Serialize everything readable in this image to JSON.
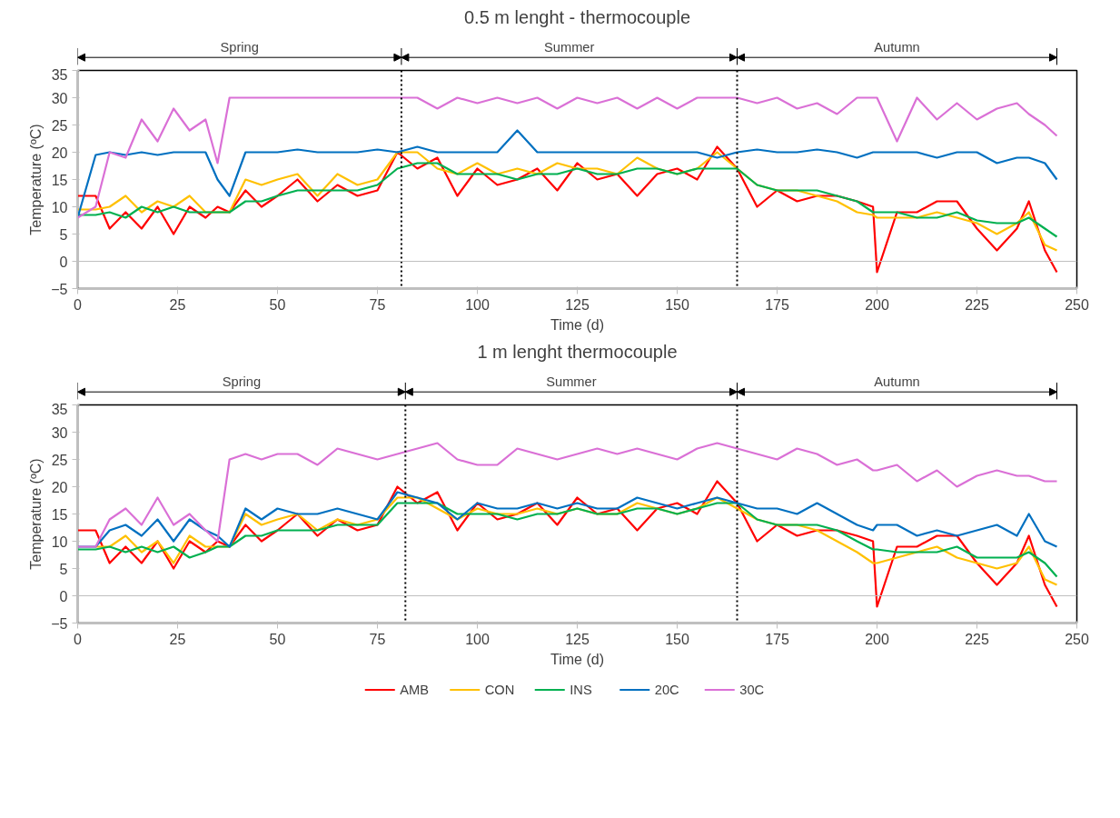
{
  "chart_data": [
    {
      "type": "line",
      "title": "0.5 m lenght - thermocouple",
      "xlabel": "Time (d)",
      "ylabel": "Temperature (ºC)",
      "xlim": [
        0,
        250
      ],
      "ylim": [
        -5,
        35
      ],
      "xticks": [
        0,
        25,
        50,
        75,
        100,
        125,
        150,
        175,
        200,
        225,
        250
      ],
      "yticks": [
        -5,
        0,
        5,
        10,
        15,
        20,
        25,
        30,
        35
      ],
      "grid": false,
      "legend": false,
      "line_style": "solid",
      "marker": "none",
      "x": [
        0,
        4.5,
        8,
        12,
        16,
        20,
        24,
        28,
        32,
        35,
        38,
        42,
        46,
        50,
        55,
        60,
        65,
        70,
        75,
        80,
        85,
        90,
        95,
        100,
        105,
        110,
        115,
        120,
        125,
        130,
        135,
        140,
        145,
        150,
        155,
        160,
        165,
        170,
        175,
        180,
        185,
        190,
        195,
        199,
        200,
        205,
        210,
        215,
        220,
        225,
        230,
        235,
        238,
        242,
        245
      ],
      "series": [
        {
          "color": "#ff0000",
          "values": [
            12,
            12,
            6,
            9,
            6,
            10,
            5,
            10,
            8,
            10,
            9,
            13,
            10,
            12,
            15,
            11,
            14,
            12,
            13,
            20,
            17,
            19,
            12,
            17,
            14,
            15,
            17,
            13,
            18,
            15,
            16,
            12,
            16,
            17,
            15,
            21,
            17,
            10,
            13,
            11,
            12,
            12,
            11,
            10,
            -2,
            9,
            9,
            11,
            11,
            6,
            2,
            6,
            11,
            2,
            -2
          ]
        },
        {
          "color": "#ffc000",
          "values": [
            9.5,
            9.5,
            10,
            12,
            9,
            11,
            10,
            12,
            9,
            9,
            9,
            15,
            14,
            15,
            16,
            12,
            16,
            14,
            15,
            20,
            20,
            17,
            16,
            18,
            16,
            17,
            16,
            18,
            17,
            17,
            16,
            19,
            17,
            16,
            17,
            20,
            17,
            14,
            13,
            13,
            12,
            11,
            9,
            8.5,
            8,
            8,
            8,
            9,
            8,
            7,
            5,
            7,
            9,
            3,
            2
          ]
        },
        {
          "color": "#00b050",
          "values": [
            8.5,
            8.5,
            9,
            8,
            10,
            9,
            10,
            9,
            9,
            9,
            9,
            11,
            11,
            12,
            13,
            13,
            13,
            13,
            14,
            17,
            18,
            18,
            16,
            16,
            16,
            15,
            16,
            16,
            17,
            16,
            16,
            17,
            17,
            16,
            17,
            17,
            17,
            14,
            13,
            13,
            13,
            12,
            11,
            9,
            9,
            9,
            8,
            8,
            9,
            7.5,
            7,
            7,
            8,
            6,
            4.5
          ]
        },
        {
          "color": "#0070c0",
          "values": [
            8,
            19.5,
            20,
            19.5,
            20,
            19.5,
            20,
            20,
            20,
            15,
            12,
            20,
            20,
            20,
            20.5,
            20,
            20,
            20,
            20.5,
            20,
            21,
            20,
            20,
            20,
            20,
            24,
            20,
            20,
            20,
            20,
            20,
            20,
            20,
            20,
            20,
            19,
            20,
            20.5,
            20,
            20,
            20.5,
            20,
            19,
            20,
            20,
            20,
            20,
            19,
            20,
            20,
            18,
            19,
            19,
            18,
            15
          ]
        },
        {
          "color": "#da70d6",
          "values": [
            8,
            10,
            20,
            19,
            26,
            22,
            28,
            24,
            26,
            18,
            30,
            30,
            30,
            30,
            30,
            30,
            30,
            30,
            30,
            30,
            30,
            28,
            30,
            29,
            30,
            29,
            30,
            28,
            30,
            29,
            30,
            28,
            30,
            28,
            30,
            30,
            30,
            29,
            30,
            28,
            29,
            27,
            30,
            30,
            30,
            22,
            30,
            26,
            29,
            26,
            28,
            29,
            27,
            25,
            23
          ]
        }
      ],
      "ref_lines": [
        {
          "axis": "x",
          "value": 81,
          "line_style": "dotted",
          "color": "#000000"
        },
        {
          "axis": "x",
          "value": 165,
          "line_style": "dotted",
          "color": "#000000"
        },
        {
          "axis": "y",
          "value": 0,
          "line_style": "solid",
          "color": "#bfbfbf"
        }
      ],
      "annotations": [
        "Spring",
        "Summer",
        "Autumn"
      ]
    },
    {
      "type": "line",
      "title": "1 m lenght thermocouple",
      "xlabel": "Time (d)",
      "ylabel": "Temperature (ºC)",
      "xlim": [
        0,
        250
      ],
      "ylim": [
        -5,
        35
      ],
      "xticks": [
        0,
        25,
        50,
        75,
        100,
        125,
        150,
        175,
        200,
        225,
        250
      ],
      "yticks": [
        -5,
        0,
        5,
        10,
        15,
        20,
        25,
        30,
        35
      ],
      "grid": false,
      "legend": "bottom",
      "line_style": "solid",
      "marker": "none",
      "x": [
        0,
        4.5,
        8,
        12,
        16,
        20,
        24,
        28,
        32,
        35,
        38,
        42,
        46,
        50,
        55,
        60,
        65,
        70,
        75,
        80,
        85,
        90,
        95,
        100,
        105,
        110,
        115,
        120,
        125,
        130,
        135,
        140,
        145,
        150,
        155,
        160,
        165,
        170,
        175,
        180,
        185,
        190,
        195,
        199,
        200,
        205,
        210,
        215,
        220,
        225,
        230,
        235,
        238,
        242,
        245
      ],
      "series": [
        {
          "name": "AMB",
          "color": "#ff0000",
          "values": [
            12,
            12,
            6,
            9,
            6,
            10,
            5,
            10,
            8,
            10,
            9,
            13,
            10,
            12,
            15,
            11,
            14,
            12,
            13,
            20,
            17,
            19,
            12,
            17,
            14,
            15,
            17,
            13,
            18,
            15,
            16,
            12,
            16,
            17,
            15,
            21,
            17,
            10,
            13,
            11,
            12,
            12,
            11,
            10,
            -2,
            9,
            9,
            11,
            11,
            6,
            2,
            6,
            11,
            2,
            -2
          ]
        },
        {
          "name": "CON",
          "color": "#ffc000",
          "values": [
            null,
            9,
            9,
            11,
            8,
            10,
            6,
            11,
            9,
            9,
            9,
            15,
            13,
            14,
            15,
            12,
            14,
            13,
            14,
            18,
            18,
            16,
            14,
            16,
            15,
            15,
            16,
            15,
            16,
            15,
            15,
            17,
            16,
            15,
            16,
            18,
            16,
            14,
            13,
            13,
            12,
            10,
            8,
            6,
            6,
            7,
            8,
            9,
            7,
            6,
            5,
            6,
            9,
            3,
            2
          ]
        },
        {
          "name": "INS",
          "color": "#00b050",
          "values": [
            8.5,
            8.5,
            9,
            8,
            9,
            8,
            9,
            7,
            8,
            9,
            9,
            11,
            11,
            12,
            12,
            12,
            13,
            13,
            13,
            17,
            17,
            17,
            15,
            15,
            15,
            14,
            15,
            15,
            16,
            15,
            15,
            16,
            16,
            15,
            16,
            17,
            17,
            14,
            13,
            13,
            13,
            12,
            10,
            8.5,
            8.5,
            8,
            8,
            8,
            9,
            7,
            7,
            7,
            8,
            6,
            3.5
          ]
        },
        {
          "name": "20C",
          "color": "#0070c0",
          "values": [
            9,
            9,
            12,
            13,
            11,
            14,
            10,
            14,
            12,
            11,
            9,
            16,
            14,
            16,
            15,
            15,
            16,
            15,
            14,
            19,
            18,
            17,
            14,
            17,
            16,
            16,
            17,
            16,
            17,
            16,
            16,
            18,
            17,
            16,
            17,
            18,
            17,
            16,
            16,
            15,
            17,
            15,
            13,
            12,
            13,
            13,
            11,
            12,
            11,
            12,
            13,
            11,
            15,
            10,
            9
          ]
        },
        {
          "name": "30C",
          "color": "#da70d6",
          "values": [
            9,
            9,
            14,
            16,
            13,
            18,
            13,
            15,
            12,
            10,
            25,
            26,
            25,
            26,
            26,
            24,
            27,
            26,
            25,
            26,
            27,
            28,
            25,
            24,
            24,
            27,
            26,
            25,
            26,
            27,
            26,
            27,
            26,
            25,
            27,
            28,
            27,
            26,
            25,
            27,
            26,
            24,
            25,
            23,
            23,
            24,
            21,
            23,
            20,
            22,
            23,
            22,
            22,
            21,
            21
          ]
        }
      ],
      "ref_lines": [
        {
          "axis": "x",
          "value": 82,
          "line_style": "dotted",
          "color": "#000000"
        },
        {
          "axis": "x",
          "value": 165,
          "line_style": "dotted",
          "color": "#000000"
        },
        {
          "axis": "y",
          "value": 0,
          "line_style": "solid",
          "color": "#bfbfbf"
        }
      ],
      "annotations": [
        "Spring",
        "Summer",
        "Autumn"
      ]
    }
  ]
}
